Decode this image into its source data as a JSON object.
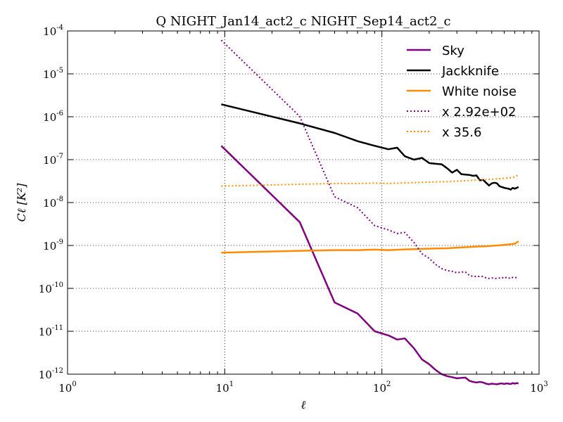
{
  "chart_data": {
    "type": "line",
    "title": "Q NIGHT_Jan14_act2_c NIGHT_Sep14_act2_c",
    "xlabel": "ℓ",
    "ylabel": "Cℓ [K²]",
    "xscale": "log",
    "yscale": "log",
    "xlim": [
      1,
      1000
    ],
    "ylim": [
      1e-12,
      0.0001
    ],
    "x_ticks": [
      {
        "value": 1,
        "base": "10",
        "exp": "0"
      },
      {
        "value": 10,
        "base": "10",
        "exp": "1"
      },
      {
        "value": 100,
        "base": "10",
        "exp": "2"
      },
      {
        "value": 1000,
        "base": "10",
        "exp": "3"
      }
    ],
    "y_ticks": [
      {
        "value": 1e-12,
        "base": "10",
        "exp": "-12"
      },
      {
        "value": 1e-11,
        "base": "10",
        "exp": "-11"
      },
      {
        "value": 1e-10,
        "base": "10",
        "exp": "-10"
      },
      {
        "value": 1e-09,
        "base": "10",
        "exp": "-9"
      },
      {
        "value": 1e-08,
        "base": "10",
        "exp": "-8"
      },
      {
        "value": 1e-07,
        "base": "10",
        "exp": "-7"
      },
      {
        "value": 1e-06,
        "base": "10",
        "exp": "-6"
      },
      {
        "value": 1e-05,
        "base": "10",
        "exp": "-5"
      },
      {
        "value": 0.0001,
        "base": "10",
        "exp": "-4"
      }
    ],
    "grid": true,
    "legend_position": "top-right",
    "series": [
      {
        "name": "Sky",
        "color": "#800080",
        "style": "solid",
        "x": [
          9.5,
          30,
          50,
          70,
          90,
          110,
          125,
          140,
          160,
          180,
          200,
          220,
          240,
          260,
          280,
          300,
          320,
          340,
          360,
          380,
          400,
          420,
          440,
          460,
          480,
          500,
          520,
          540,
          560,
          580,
          600,
          620,
          640,
          660,
          680,
          700,
          720,
          740
        ],
        "y": [
          2.1e-07,
          3.5e-09,
          4.7e-11,
          2.6e-11,
          1e-11,
          8e-12,
          6.4e-12,
          6.8e-12,
          4e-12,
          2.2e-12,
          1.7e-12,
          1.25e-12,
          1e-12,
          9e-13,
          8.5e-13,
          8e-13,
          8.2e-13,
          8.3e-13,
          7e-13,
          6.6e-13,
          6.4e-13,
          6.6e-13,
          6.4e-13,
          6e-13,
          5.8e-13,
          6e-13,
          5.9e-13,
          5.8e-13,
          6e-13,
          6.1e-13,
          5.9e-13,
          6.1e-13,
          6e-13,
          5.9e-13,
          6.2e-13,
          6e-13,
          6.2e-13,
          6.1e-13
        ]
      },
      {
        "name": "Jackknife",
        "color": "#000000",
        "style": "solid",
        "x": [
          9.5,
          30,
          50,
          70,
          90,
          110,
          125,
          140,
          160,
          180,
          200,
          220,
          240,
          260,
          280,
          300,
          320,
          340,
          360,
          380,
          400,
          420,
          440,
          460,
          480,
          500,
          520,
          540,
          560,
          580,
          600,
          620,
          640,
          660,
          680,
          700,
          720,
          740
        ],
        "y": [
          1.95e-06,
          7e-07,
          4.2e-07,
          2.7e-07,
          2.1e-07,
          1.75e-07,
          1.9e-07,
          1.2e-07,
          1e-07,
          1.1e-07,
          8.3e-08,
          8e-08,
          7.8e-08,
          6.3e-08,
          5e-08,
          5.8e-08,
          4.6e-08,
          4.5e-08,
          4.4e-08,
          4.2e-08,
          4.3e-08,
          3.3e-08,
          3.4e-08,
          2.9e-08,
          2.5e-08,
          2.8e-08,
          2.9e-08,
          2.8e-08,
          2.4e-08,
          2.3e-08,
          2.2e-08,
          2.15e-08,
          2.1e-08,
          2e-08,
          2.2e-08,
          2.1e-08,
          2.2e-08,
          2.3e-08
        ]
      },
      {
        "name": "White noise",
        "color": "#ff8c00",
        "style": "solid",
        "x": [
          9.5,
          30,
          50,
          70,
          90,
          110,
          140,
          180,
          220,
          260,
          300,
          340,
          380,
          420,
          460,
          500,
          540,
          580,
          620,
          660,
          700,
          740
        ],
        "y": [
          6.8e-10,
          7.5e-10,
          7.8e-10,
          7.8e-10,
          8e-10,
          7.8e-10,
          8.1e-10,
          8.3e-10,
          8.5e-10,
          8.6e-10,
          8.9e-10,
          9.1e-10,
          9.3e-10,
          9.5e-10,
          9.6e-10,
          9.8e-10,
          1e-09,
          1.02e-09,
          1.05e-09,
          1.07e-09,
          1.1e-09,
          1.25e-09
        ]
      },
      {
        "name": "x 2.92e+02",
        "color": "#800080",
        "style": "dotted",
        "x": [
          9.5,
          30,
          50,
          70,
          90,
          110,
          125,
          140,
          160,
          180,
          200,
          220,
          240,
          260,
          280,
          300,
          320,
          340,
          360,
          380,
          400,
          420,
          440,
          460,
          480,
          500,
          520,
          540,
          560,
          580,
          600,
          620,
          640,
          660,
          680,
          700,
          720,
          740
        ],
        "y": [
          6.1e-05,
          1.02e-06,
          1.37e-08,
          7.6e-09,
          2.9e-09,
          2.3e-09,
          1.9e-09,
          2e-09,
          1.17e-09,
          6.4e-10,
          5e-10,
          3.6e-10,
          2.9e-10,
          2.6e-10,
          2.5e-10,
          2.3e-10,
          2.4e-10,
          2.4e-10,
          2e-10,
          1.9e-10,
          1.9e-10,
          1.9e-10,
          1.9e-10,
          1.75e-10,
          1.7e-10,
          1.75e-10,
          1.7e-10,
          1.7e-10,
          1.75e-10,
          1.8e-10,
          1.7e-10,
          1.8e-10,
          1.75e-10,
          1.7e-10,
          1.8e-10,
          1.75e-10,
          1.8e-10,
          1.78e-10
        ]
      },
      {
        "name": "x 35.6",
        "color": "#ff8c00",
        "style": "dotted",
        "x": [
          9.5,
          30,
          50,
          70,
          90,
          110,
          140,
          180,
          220,
          260,
          300,
          340,
          380,
          420,
          460,
          500,
          540,
          580,
          620,
          660,
          700,
          740
        ],
        "y": [
          2.42e-08,
          2.67e-08,
          2.78e-08,
          2.78e-08,
          2.85e-08,
          2.78e-08,
          2.88e-08,
          2.95e-08,
          3.03e-08,
          3.06e-08,
          3.17e-08,
          3.24e-08,
          3.31e-08,
          3.38e-08,
          3.42e-08,
          3.49e-08,
          3.56e-08,
          3.63e-08,
          3.74e-08,
          3.81e-08,
          3.92e-08,
          4.45e-08
        ]
      }
    ]
  }
}
